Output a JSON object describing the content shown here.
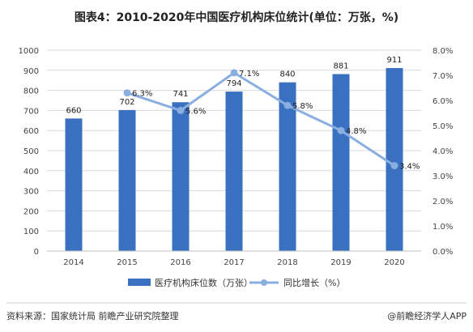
{
  "title": "图表4：2010-2020年中国医疗机构床位统计(单位：万张，%)",
  "source": "资料来源：国家统计局 前瞻产业研究院整理",
  "credit": "@前瞻经济学人APP",
  "colors": {
    "bar": "#3a70c0",
    "line": "#8aaee0",
    "grid": "#d9d9d9"
  },
  "chart_data": {
    "type": "bar",
    "categories": [
      "2014",
      "2015",
      "2016",
      "2017",
      "2018",
      "2019",
      "2020"
    ],
    "series": [
      {
        "name": "医疗机构床位数（万张）",
        "type": "bar",
        "axis": "left",
        "values": [
          660,
          702,
          741,
          794,
          840,
          881,
          911
        ],
        "labels": [
          "660",
          "702",
          "741",
          "794",
          "840",
          "881",
          "911"
        ]
      },
      {
        "name": "同比增长（%）",
        "type": "line",
        "axis": "right",
        "values": [
          null,
          6.3,
          5.6,
          7.1,
          5.8,
          4.8,
          3.4
        ],
        "labels": [
          "",
          "6.3%",
          "5.6%",
          "7.1%",
          "5.8%",
          "4.8%",
          "3.4%"
        ]
      }
    ],
    "ylim": [
      0,
      1000
    ],
    "y_ticks": [
      "0",
      "100",
      "200",
      "300",
      "400",
      "500",
      "600",
      "700",
      "800",
      "900",
      "1000"
    ],
    "y2lim": [
      0,
      8
    ],
    "y2_ticks": [
      "0.0%",
      "1.0%",
      "2.0%",
      "3.0%",
      "4.0%",
      "5.0%",
      "6.0%",
      "7.0%",
      "8.0%"
    ],
    "grid": true,
    "legend_position": "bottom"
  }
}
